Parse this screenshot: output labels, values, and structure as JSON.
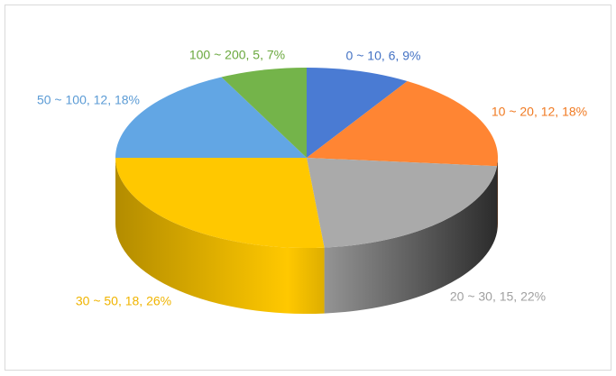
{
  "chart_data": {
    "type": "pie3d",
    "categories": [
      "0 ~ 10",
      "10 ~ 20",
      "20 ~ 30",
      "30 ~ 50",
      "50 ~ 100",
      "100 ~ 200"
    ],
    "values": [
      6,
      12,
      15,
      18,
      12,
      5
    ],
    "value_labels": [
      "0 ~ 10, 6, 9%",
      "10 ~ 20, 12, 18%",
      "20 ~ 30, 15, 22%",
      "30 ~ 50, 18, 26%",
      "50 ~ 100, 12, 18%",
      "100 ~ 200, 5, 7%"
    ],
    "colors": [
      "#4a7bd3",
      "#ff8533",
      "#aaaaaa",
      "#ffc800",
      "#62a6e4",
      "#74b44a"
    ],
    "label_colors": [
      "#4472c4",
      "#f07a22",
      "#a0a0a0",
      "#f0b400",
      "#5b9bd5",
      "#6aa83e"
    ]
  }
}
